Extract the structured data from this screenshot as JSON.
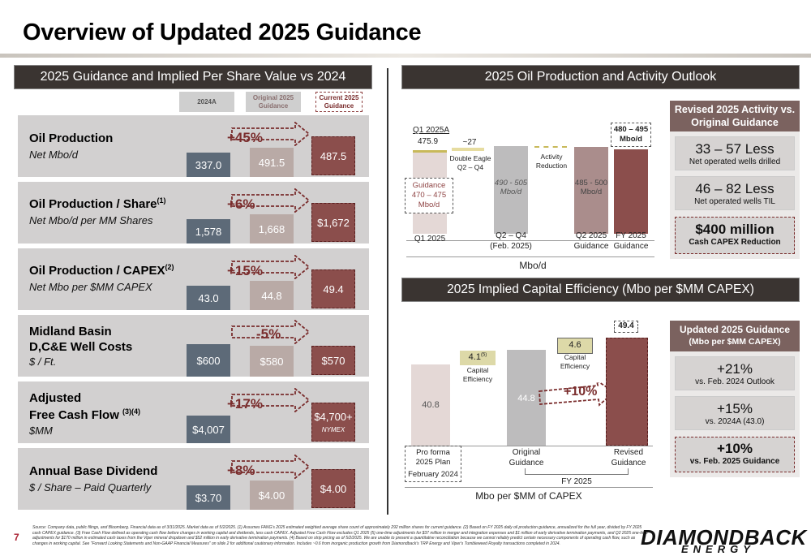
{
  "title": "Overview of Updated 2025 Guidance",
  "left_header": "2025 Guidance and Implied Per Share Value vs 2024",
  "right_header": "2025 Oil Production and Activity Outlook",
  "right_header2": "2025 Implied Capital Efficiency (Mbo per $MM CAPEX)",
  "columns": {
    "c1": "2024A",
    "c2": "Original 2025 Guidance",
    "c3": "Current 2025 Guidance"
  },
  "rows": [
    {
      "title": "Oil Production",
      "sub": "Net Mbo/d",
      "v1": "337.0",
      "v2": "491.5",
      "v3": "487.5",
      "pct": "+45%"
    },
    {
      "title": "Oil Production / Share",
      "sup": "(1)",
      "sub": "Net Mbo/d per MM Shares",
      "v1": "1,578",
      "v2": "1,668",
      "v3": "$1,672",
      "pct": "+6%"
    },
    {
      "title": "Oil Production / CAPEX",
      "sup": "(2)",
      "sub": "Net Mbo per $MM CAPEX",
      "v1": "43.0",
      "v2": "44.8",
      "v3": "49.4",
      "pct": "+15%"
    },
    {
      "title": "Midland Basin",
      "title2": "D,C&E Well Costs",
      "sub": "$ / Ft.",
      "v1": "$600",
      "v2": "$580",
      "v3": "$570",
      "pct": "-5%"
    },
    {
      "title": "Adjusted",
      "title2": "Free Cash Flow",
      "sup": "(3)(4)",
      "sub": "$MM",
      "v1": "$4,007",
      "v2": "",
      "v3": "$4,700+",
      "v3b": "NYMEX",
      "pct": "+17%"
    },
    {
      "title": "Annual Base Dividend",
      "sub": "$ / Share – Paid Quarterly",
      "v1": "$3.70",
      "v2": "$4.00",
      "v3": "$4.00",
      "pct": "+8%"
    }
  ],
  "prod_chart": {
    "q1_label": "Q1 2025A",
    "q1_val": "475.9",
    "approx": "~27",
    "dbl_eagle": "Double Eagle Q2 – Q4",
    "activity": "Activity Reduction",
    "guidance_box": "Guidance 470 – 475 Mbo/d",
    "q2q4_bar": "490 - 505 Mbo/d",
    "q2g_bar": "485 - 500 Mbo/d",
    "fy_box": "480 – 495 Mbo/d",
    "x1": "Q1 2025",
    "x2": "Q2 – Q4 (Feb. 2025)",
    "x3": "Q2 2025 Guidance",
    "x4": "FY 2025 Guidance",
    "axis": "Mbo/d"
  },
  "activity": {
    "header": "Revised 2025 Activity vs. Original Guidance",
    "b1_big": "33 – 57 Less",
    "b1_sm": "Net operated wells drilled",
    "b2_big": "46 – 82 Less",
    "b2_sm": "Net operated wells TIL",
    "b3_big": "$400 million",
    "b3_sm": "Cash CAPEX Reduction"
  },
  "eff_chart": {
    "pro_forma": "40.8",
    "cap1": "4.1",
    "cap1sup": "(5)",
    "cap_lbl": "Capital Efficiency",
    "orig": "44.8",
    "cap2": "4.6",
    "revised": "49.4",
    "pct": "+10%",
    "x1": "Pro forma 2025 Plan",
    "x1b": "February 2024",
    "x2": "Original Guidance",
    "x3": "Revised Guidance",
    "fy": "FY 2025",
    "axis": "Mbo per $MM of CAPEX"
  },
  "updated": {
    "header": "Updated 2025 Guidance",
    "header2": "(Mbo per $MM CAPEX)",
    "b1_big": "+21%",
    "b1_sm": "vs. Feb. 2024 Outlook",
    "b2_big": "+15%",
    "b2_sm": "vs. 2024A (43.0)",
    "b3_big": "+10%",
    "b3_sm": "vs. Feb. 2025 Guidance"
  },
  "page_number": "7",
  "logo": "DIAMONDBACK",
  "logo2": "ENERGY",
  "footnote": "Source: Company data, public filings, and Bloomberg. Financial data as of 3/31/2025. Market data as of 5/2/2025. (1) Assumes FANG's 2025 estimated weighted average share count of approximately 292 million shares for current guidance. (2) Based on FY 2025 daily oil production guidance, annualized for the full year, divided by FY 2025 cash CAPEX guidance. (3) Free Cash Flow defined as operating cash flow before changes in working capital and dividends, less cash CAPEX. Adjusted Free Cash Flow excludes Q1 2025 (5) one-time adjustments for $37 million in merger and integration expenses and $1 million of early derivative termination payments, and Q2 2025 one-time adjustments for $170 million in estimated cash taxes from the Viper mineral dropdown and $52 million in early derivative termination payments. (4) Based on strip pricing as of 5/2/2025. We are unable to present a quantitative reconciliation because we cannot reliably predict certain necessary components of operating cash flow, such as changes in working capital. See \"Forward Looking Statements and Non-GAAP Financial Measures\" on slide 2 for additional cautionary information. Includes ~0.6 from inorganic production growth from Diamondback's TRP Energy and Viper's Tumbleweed Royalty transactions completed in 2024."
}
